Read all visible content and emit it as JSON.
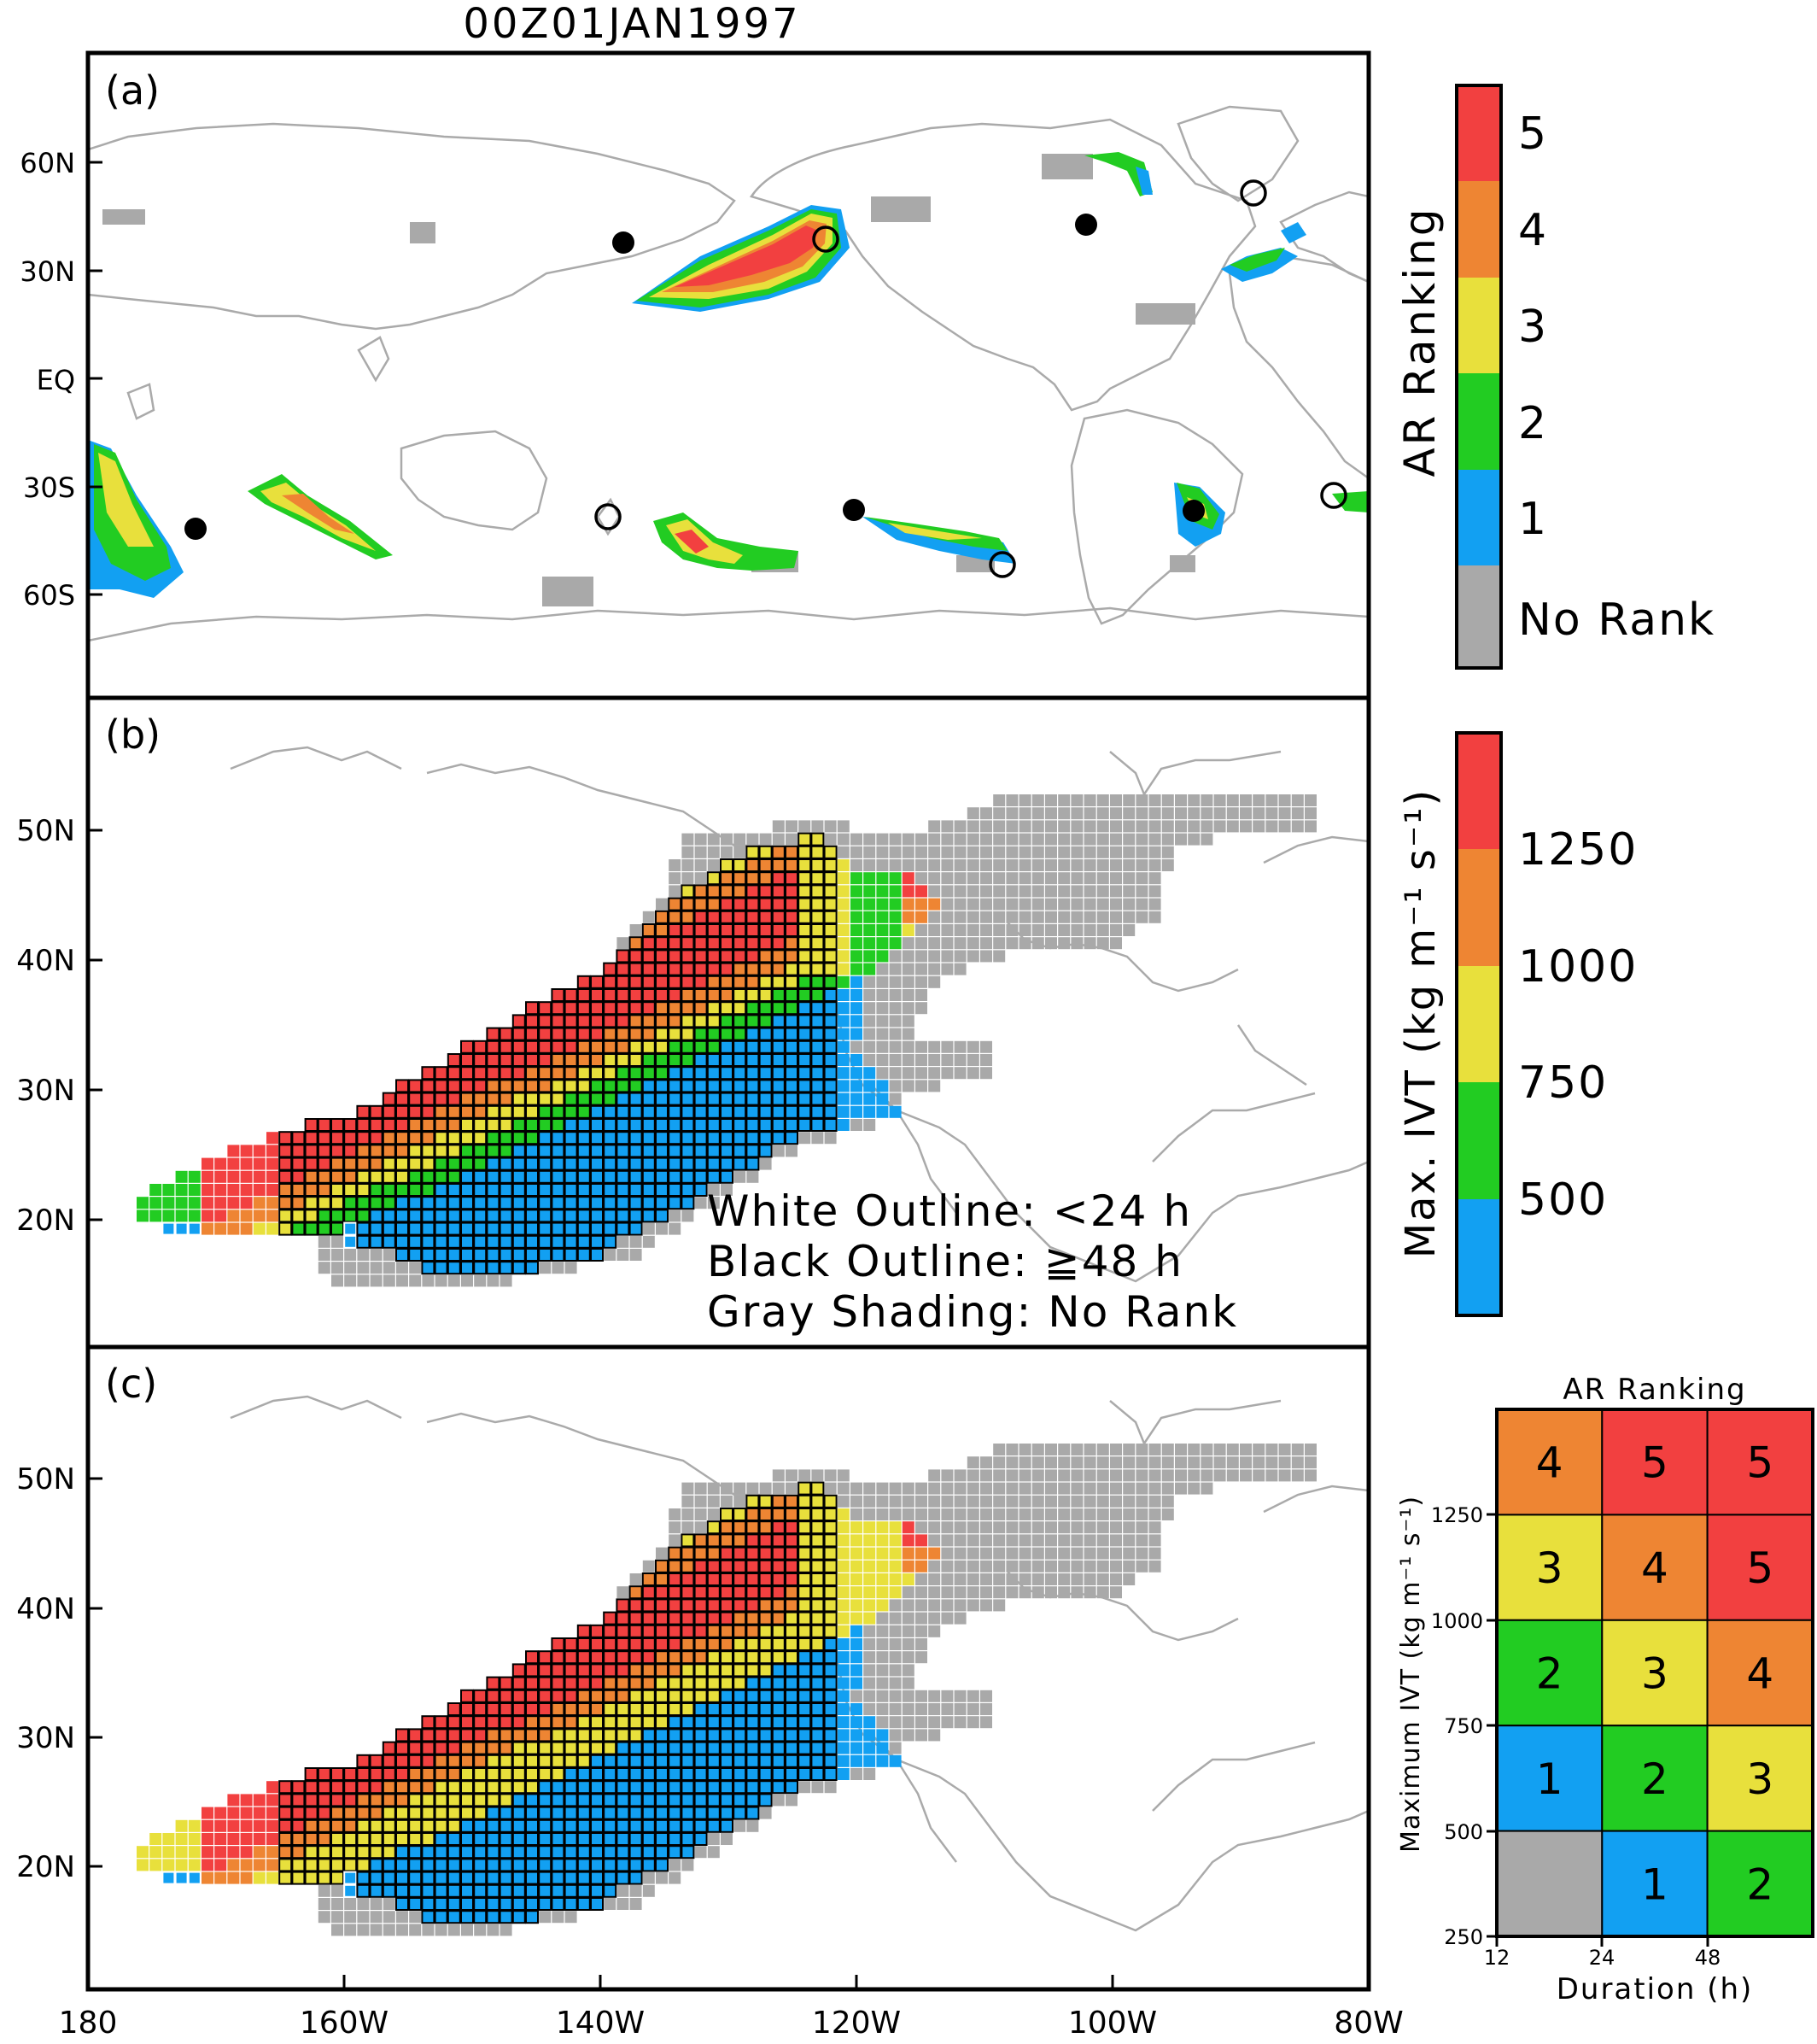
{
  "title": "00Z01JAN1997",
  "panels": [
    {
      "label": "(a)",
      "lat_labels": [
        "60N",
        "30N",
        "EQ",
        "30S",
        "60S"
      ]
    },
    {
      "label": "(b)",
      "lat_labels": [
        "50N",
        "40N",
        "30N",
        "20N"
      ]
    },
    {
      "label": "(c)",
      "lat_labels": [
        "50N",
        "40N",
        "30N",
        "20N"
      ]
    }
  ],
  "lon_labels": [
    "180",
    "160W",
    "140W",
    "120W",
    "100W",
    "80W"
  ],
  "notes": [
    "White Outline: <24 h",
    "Black Outline: ≧48 h",
    "Gray Shading: No Rank"
  ],
  "colors": {
    "red": "#f24040",
    "orange": "#ee8533",
    "yellow": "#e8e03c",
    "green": "#22cc22",
    "blue": "#12a0f2",
    "gray": "#a9a9a9",
    "coast": "#aaaaaa"
  },
  "colorbar_rank": {
    "title": "AR Ranking",
    "labels": [
      "5",
      "4",
      "3",
      "2",
      "1",
      "No Rank"
    ]
  },
  "colorbar_ivt": {
    "title": "Max. IVT (kg m⁻¹ s⁻¹)",
    "ticks": [
      "1250",
      "1000",
      "750",
      "500"
    ]
  },
  "ranking_matrix": {
    "title": "AR Ranking",
    "ylabel": "Maximum IVT (kg m⁻¹ s⁻¹)",
    "xlabel": "Duration (h)",
    "y_ticks": [
      "1250",
      "1000",
      "750",
      "500",
      "250"
    ],
    "x_ticks": [
      "12",
      "24",
      "48"
    ],
    "rows": [
      [
        "4",
        "5",
        "5"
      ],
      [
        "3",
        "4",
        "5"
      ],
      [
        "2",
        "3",
        "4"
      ],
      [
        "1",
        "2",
        "3"
      ],
      [
        "",
        "1",
        "2"
      ]
    ]
  }
}
